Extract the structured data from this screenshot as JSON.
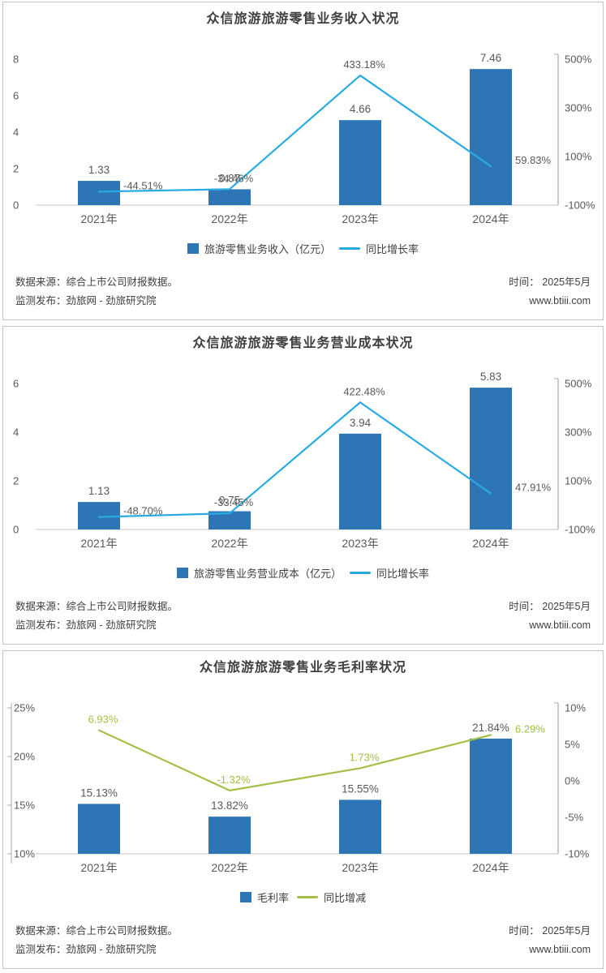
{
  "colors": {
    "bar": "#2E75B6",
    "line_blue": "#29ABE2",
    "line_green": "#A2C045",
    "axis_text": "#595959",
    "label_text": "#595959",
    "title_text": "#3f3f3f",
    "footer_text": "#404040",
    "baseline": "#D9D9D9",
    "axis_line": "#ABABAB",
    "panel_border": "#c3c3c3"
  },
  "footer": {
    "source": "数据来源：综合上市公司财报数据。",
    "publisher": "监测发布：劲旅网 - 劲旅研究院",
    "time": "时间： 2025年5月",
    "site": "www.btiii.com"
  },
  "chart_data": [
    {
      "type": "bar+line",
      "title": "众信旅游旅游零售业务收入状况",
      "categories": [
        "2021年",
        "2022年",
        "2023年",
        "2024年"
      ],
      "series": [
        {
          "name": "旅游零售业务收入（亿元）",
          "type": "bar",
          "axis": "left",
          "color": "#2E75B6",
          "values": [
            1.33,
            0.87,
            4.66,
            7.46
          ],
          "labels": [
            "1.33",
            "0.87",
            "4.66",
            "7.46"
          ]
        },
        {
          "name": "同比增长率",
          "type": "line",
          "axis": "right",
          "color": "#29ABE2",
          "label_color": "#595959",
          "values": [
            -44.51,
            -34.46,
            433.18,
            59.83
          ],
          "labels": [
            "-44.51%",
            "-34.46%",
            "433.18%",
            "59.83%"
          ],
          "label_placement": [
            "right",
            "above",
            "above",
            "right"
          ]
        }
      ],
      "left_axis": {
        "min": 0,
        "max": 8,
        "show_line": false,
        "ticks": [
          {
            "v": 8,
            "t": "8"
          },
          {
            "v": 6,
            "t": "6"
          },
          {
            "v": 4,
            "t": "4"
          },
          {
            "v": 2,
            "t": "2"
          },
          {
            "v": 0,
            "t": "0"
          }
        ]
      },
      "right_axis": {
        "min": -100,
        "max": 500,
        "show_line": true,
        "ticks": [
          {
            "v": 500,
            "t": "500%"
          },
          {
            "v": 300,
            "t": "300%"
          },
          {
            "v": 100,
            "t": "100%"
          },
          {
            "v": -100,
            "t": "-100%"
          }
        ]
      },
      "grid": "off",
      "legend_position": "bottom"
    },
    {
      "type": "bar+line",
      "title": "众信旅游旅游零售业务营业成本状况",
      "categories": [
        "2021年",
        "2022年",
        "2023年",
        "2024年"
      ],
      "series": [
        {
          "name": "旅游零售业务营业成本（亿元）",
          "type": "bar",
          "axis": "left",
          "color": "#2E75B6",
          "values": [
            1.13,
            0.75,
            3.94,
            5.83
          ],
          "labels": [
            "1.13",
            "0.75",
            "3.94",
            "5.83"
          ]
        },
        {
          "name": "同比增长率",
          "type": "line",
          "axis": "right",
          "color": "#29ABE2",
          "label_color": "#595959",
          "values": [
            -48.7,
            -33.45,
            422.48,
            47.91
          ],
          "labels": [
            "-48.70%",
            "-33.45%",
            "422.48%",
            "47.91%"
          ],
          "label_placement": [
            "right",
            "above",
            "above",
            "right"
          ]
        }
      ],
      "left_axis": {
        "min": 0,
        "max": 6,
        "show_line": false,
        "ticks": [
          {
            "v": 6,
            "t": "6"
          },
          {
            "v": 4,
            "t": "4"
          },
          {
            "v": 2,
            "t": "2"
          },
          {
            "v": 0,
            "t": "0"
          }
        ]
      },
      "right_axis": {
        "min": -100,
        "max": 500,
        "show_line": true,
        "ticks": [
          {
            "v": 500,
            "t": "500%"
          },
          {
            "v": 300,
            "t": "300%"
          },
          {
            "v": 100,
            "t": "100%"
          },
          {
            "v": -100,
            "t": "-100%"
          }
        ]
      },
      "grid": "off",
      "legend_position": "bottom"
    },
    {
      "type": "bar+line",
      "title": "众信旅游旅游零售业务毛利率状况",
      "categories": [
        "2021年",
        "2022年",
        "2023年",
        "2024年"
      ],
      "series": [
        {
          "name": "毛利率",
          "type": "bar",
          "axis": "left",
          "color": "#2E75B6",
          "values": [
            15.13,
            13.82,
            15.55,
            21.84
          ],
          "labels": [
            "15.13%",
            "13.82%",
            "15.55%",
            "21.84%"
          ]
        },
        {
          "name": "同比增减",
          "type": "line",
          "axis": "right",
          "color": "#A2C045",
          "label_color": "#A2C045",
          "values": [
            6.93,
            -1.32,
            1.73,
            6.29
          ],
          "labels": [
            "6.93%",
            "-1.32%",
            "1.73%",
            "6.29%"
          ],
          "label_placement": [
            "above",
            "above",
            "above",
            "right"
          ]
        }
      ],
      "left_axis": {
        "min": 10,
        "max": 25,
        "show_line": true,
        "ticks": [
          {
            "v": 25,
            "t": "25%"
          },
          {
            "v": 20,
            "t": "20%"
          },
          {
            "v": 15,
            "t": "15%"
          },
          {
            "v": 10,
            "t": "10%"
          }
        ]
      },
      "right_axis": {
        "min": -10,
        "max": 10,
        "show_line": true,
        "ticks": [
          {
            "v": 10,
            "t": "10%"
          },
          {
            "v": 5,
            "t": "5%"
          },
          {
            "v": 0,
            "t": "0%"
          },
          {
            "v": -5,
            "t": "-5%"
          },
          {
            "v": -10,
            "t": "-10%"
          }
        ]
      },
      "grid": "off",
      "legend_position": "bottom"
    }
  ]
}
